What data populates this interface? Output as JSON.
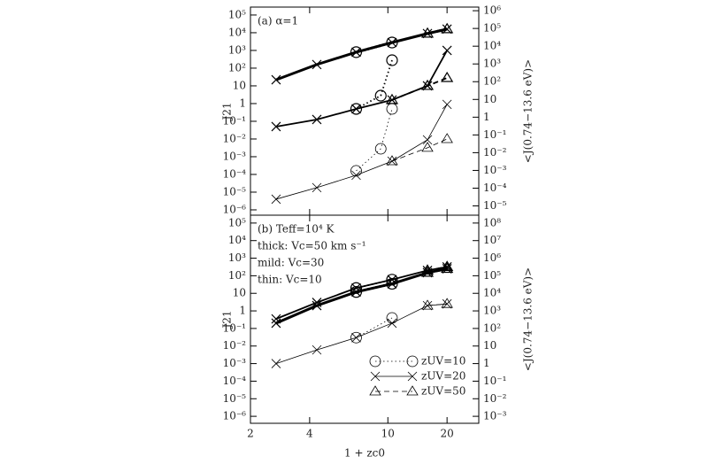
{
  "chart_data": [
    {
      "type": "line",
      "ylabel": "J21",
      "y2label": "<J(0.74−13.6 eV)>",
      "annotations": [
        "(a) α=1"
      ],
      "xlim": [
        2,
        29
      ],
      "xticks": [
        2,
        4,
        10,
        20
      ],
      "show_xtick_labels": false,
      "log_x": true,
      "log_y": true,
      "ylim": [
        5e-07,
        280000
      ],
      "y2lim": [
        3e-06,
        1600000
      ],
      "yticks": [
        {
          "value": 1e-06,
          "label": "10⁻⁶"
        },
        {
          "value": 1e-05,
          "label": "10⁻⁵"
        },
        {
          "value": 0.0001,
          "label": "10⁻⁴"
        },
        {
          "value": 0.001,
          "label": "10⁻³"
        },
        {
          "value": 0.01,
          "label": "10⁻²"
        },
        {
          "value": 0.1,
          "label": "10⁻¹"
        },
        1,
        10,
        {
          "value": 100,
          "label": "10²"
        },
        {
          "value": 1000,
          "label": "10³"
        },
        {
          "value": 10000,
          "label": "10⁴"
        },
        {
          "value": 100000,
          "label": "10⁵"
        }
      ],
      "y2ticks": [
        {
          "value": 1e-05,
          "label": "10⁻⁵"
        },
        {
          "value": 0.0001,
          "label": "10⁻⁴"
        },
        {
          "value": 0.001,
          "label": "10⁻³"
        },
        {
          "value": 0.01,
          "label": "10⁻²"
        },
        {
          "value": 0.1,
          "label": "10⁻¹"
        },
        1,
        10,
        {
          "value": 100,
          "label": "10²"
        },
        {
          "value": 1000,
          "label": "10³"
        },
        {
          "value": 10000,
          "label": "10⁴"
        },
        {
          "value": 100000,
          "label": "10⁵"
        },
        {
          "value": 1000000,
          "label": "10⁶"
        }
      ],
      "series": [
        {
          "marker": "cross",
          "linestyle": "solid",
          "linewidth": 3,
          "color": "#000000",
          "x": [
            2.7,
            4.35,
            6.9,
            10.5,
            15.9,
            20
          ],
          "values": [
            22,
            160,
            800,
            2800,
            9000,
            16000
          ]
        },
        {
          "marker": "circle",
          "linestyle": "dotted",
          "linewidth": 3,
          "color": "#000000",
          "x": [
            6.9,
            10.5
          ],
          "values": [
            800,
            2800
          ]
        },
        {
          "marker": "triangle",
          "linestyle": "dashed",
          "linewidth": 3,
          "color": "#000000",
          "x": [
            15.9,
            20
          ],
          "values": [
            9000,
            16000
          ]
        },
        {
          "marker": "cross",
          "linestyle": "solid",
          "linewidth": 1.8,
          "color": "#000000",
          "x": [
            2.7,
            4.35,
            6.9,
            10.5,
            15.9,
            20
          ],
          "values": [
            0.05,
            0.126,
            0.5,
            1.6,
            10,
            1000
          ]
        },
        {
          "marker": "circle",
          "linestyle": "dotted",
          "linewidth": 1.8,
          "color": "#000000",
          "x": [
            6.9,
            9.2,
            10.5
          ],
          "values": [
            0.5,
            2.8,
            280
          ]
        },
        {
          "marker": "triangle",
          "linestyle": "dashed",
          "linewidth": 1.8,
          "color": "#000000",
          "x": [
            10.5,
            15.9,
            20
          ],
          "values": [
            1.6,
            10,
            28
          ]
        },
        {
          "marker": "cross",
          "linestyle": "solid",
          "linewidth": 0.8,
          "color": "#000000",
          "x": [
            2.7,
            4.35,
            6.9,
            10.5,
            15.9,
            20
          ],
          "values": [
            4e-06,
            1.8e-05,
            9e-05,
            0.00056,
            0.009,
            0.9
          ]
        },
        {
          "marker": "circle",
          "linestyle": "dotted",
          "linewidth": 0.8,
          "color": "#000000",
          "x": [
            6.9,
            9.2,
            10.5
          ],
          "values": [
            0.00016,
            0.0028,
            0.5
          ]
        },
        {
          "marker": "triangle",
          "linestyle": "dashed",
          "linewidth": 0.8,
          "color": "#000000",
          "x": [
            10.5,
            15.9,
            20
          ],
          "values": [
            0.00056,
            0.0032,
            0.01
          ]
        }
      ]
    },
    {
      "type": "line",
      "ylabel": "J21",
      "y2label": "<J(0.74−13.6 eV)>",
      "xlabel": "1 + zc0",
      "annotations": [
        "(b) Teff=10⁴ K",
        "thick: Vc=50 km s⁻¹",
        "mild: Vc=30",
        "thin: Vc=10"
      ],
      "xlim": [
        2,
        29
      ],
      "xticks": [
        2,
        4,
        10,
        20
      ],
      "show_xtick_labels": true,
      "log_x": true,
      "log_y": true,
      "ylim": [
        4e-07,
        280000
      ],
      "y2lim": [
        0.0004,
        280000000
      ],
      "yticks": [
        {
          "value": 1e-06,
          "label": "10⁻⁶"
        },
        {
          "value": 1e-05,
          "label": "10⁻⁵"
        },
        {
          "value": 0.0001,
          "label": "10⁻⁴"
        },
        {
          "value": 0.001,
          "label": "10⁻³"
        },
        {
          "value": 0.01,
          "label": "10⁻²"
        },
        {
          "value": 0.1,
          "label": "10⁻¹"
        },
        1,
        10,
        {
          "value": 100,
          "label": "10²"
        },
        {
          "value": 1000,
          "label": "10³"
        },
        {
          "value": 10000,
          "label": "10⁴"
        },
        {
          "value": 100000,
          "label": "10⁵"
        }
      ],
      "y2ticks": [
        {
          "value": 0.001,
          "label": "10⁻³"
        },
        {
          "value": 0.01,
          "label": "10⁻²"
        },
        {
          "value": 0.1,
          "label": "10⁻¹"
        },
        1,
        10,
        {
          "value": 100,
          "label": "10²"
        },
        {
          "value": 1000,
          "label": "10³"
        },
        {
          "value": 10000,
          "label": "10⁴"
        },
        {
          "value": 100000,
          "label": "10⁵"
        },
        {
          "value": 1000000,
          "label": "10⁶"
        },
        {
          "value": 10000000,
          "label": "10⁷"
        },
        {
          "value": 100000000,
          "label": "10⁸"
        }
      ],
      "legend": [
        {
          "label": "zUV=10",
          "marker": "circle",
          "linestyle": "dotted"
        },
        {
          "label": "zUV=20",
          "marker": "cross",
          "linestyle": "solid"
        },
        {
          "label": "zUV=50",
          "marker": "triangle",
          "linestyle": "dashed"
        }
      ],
      "series": [
        {
          "marker": "cross",
          "linestyle": "solid",
          "linewidth": 3,
          "color": "#000000",
          "x": [
            2.7,
            4.35,
            6.9,
            10.5,
            15.9,
            20
          ],
          "values": [
            0.2,
            2,
            12,
            35,
            150,
            250
          ]
        },
        {
          "marker": "circle",
          "linestyle": "dotted",
          "linewidth": 3,
          "color": "#000000",
          "x": [
            6.9,
            10.5
          ],
          "values": [
            12,
            35
          ]
        },
        {
          "marker": "triangle",
          "linestyle": "dashed",
          "linewidth": 3,
          "color": "#000000",
          "x": [
            15.9,
            20
          ],
          "values": [
            150,
            250
          ]
        },
        {
          "marker": "cross",
          "linestyle": "solid",
          "linewidth": 1.8,
          "color": "#000000",
          "x": [
            2.7,
            4.35,
            6.9,
            10.5,
            15.9,
            20
          ],
          "values": [
            0.35,
            3,
            20,
            60,
            200,
            320
          ]
        },
        {
          "marker": "circle",
          "linestyle": "dotted",
          "linewidth": 1.8,
          "color": "#000000",
          "x": [
            6.9,
            10.5
          ],
          "values": [
            20,
            60
          ]
        },
        {
          "marker": "triangle",
          "linestyle": "dashed",
          "linewidth": 1.8,
          "color": "#000000",
          "x": [
            15.9,
            20
          ],
          "values": [
            200,
            320
          ]
        },
        {
          "marker": "cross",
          "linestyle": "solid",
          "linewidth": 0.8,
          "color": "#000000",
          "x": [
            2.7,
            4.35,
            6.9,
            10.5,
            15.9,
            20
          ],
          "values": [
            0.001,
            0.006,
            0.03,
            0.2,
            2,
            2.5
          ]
        },
        {
          "marker": "circle",
          "linestyle": "dotted",
          "linewidth": 0.8,
          "color": "#000000",
          "x": [
            6.9,
            10.5
          ],
          "values": [
            0.03,
            0.4
          ]
        },
        {
          "marker": "triangle",
          "linestyle": "dashed",
          "linewidth": 0.8,
          "color": "#000000",
          "x": [
            15.9,
            20
          ],
          "values": [
            2,
            2.5
          ]
        }
      ]
    }
  ]
}
